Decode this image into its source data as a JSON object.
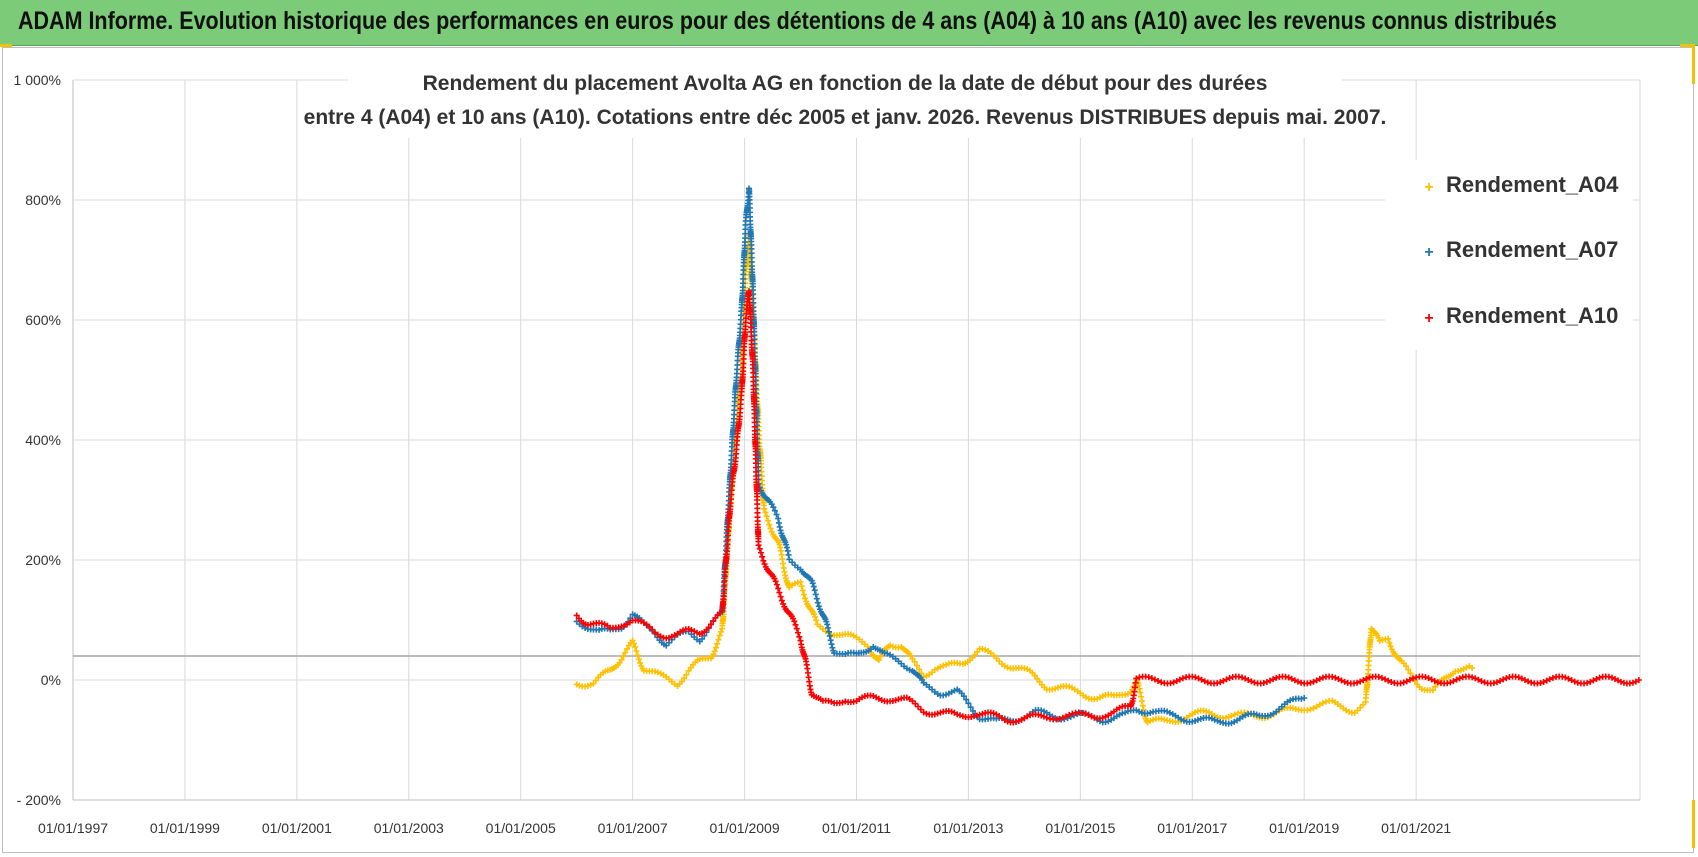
{
  "banner": {
    "title": "ADAM Informe. Evolution historique des performances en euros pour des détentions de 4 ans (A04) à 10 ans (A10) avec les revenus connus distribués"
  },
  "colors": {
    "banner_bg": "#7ccb78",
    "A04": "#ffc000",
    "A07": "#1f77b4",
    "A10": "#ff0000",
    "grid": "#d9d9d9",
    "reference_line": "#a6a6a6"
  },
  "chart_data": {
    "type": "scatter",
    "title_line1": "Rendement du placement Avolta AG en fonction de la date de début pour des durées",
    "title_line2": "entre 4 (A04) et 10 ans (A10). Cotations entre déc 2005 et janv. 2026. Revenus DISTRIBUES depuis mai. 2007.",
    "xlabel": "",
    "ylabel": "",
    "x_range": [
      1997.0,
      2025.0
    ],
    "ylim": [
      -200,
      1000
    ],
    "y_ticks": [
      1000,
      800,
      600,
      400,
      200,
      0,
      -200
    ],
    "y_tick_labels": [
      "1 000%",
      "800%",
      "600%",
      "400%",
      "200%",
      "0%",
      "- 200%"
    ],
    "x_ticks": [
      1997,
      1999,
      2001,
      2003,
      2005,
      2007,
      2009,
      2011,
      2013,
      2015,
      2017,
      2019,
      2021
    ],
    "x_tick_labels": [
      "01/01/1997",
      "01/01/1999",
      "01/01/2001",
      "01/01/2003",
      "01/01/2005",
      "01/01/2007",
      "01/01/2009",
      "01/01/2011",
      "01/01/2013",
      "01/01/2015",
      "01/01/2017",
      "01/01/2019",
      "01/01/2021"
    ],
    "reference_line_y": 40,
    "legend": [
      "Rendement_A04",
      "Rendement_A07",
      "Rendement_A10"
    ],
    "legend_position": "top-right",
    "series": [
      {
        "name": "Rendement_A04",
        "points": [
          [
            2006.0,
            -5
          ],
          [
            2006.3,
            -5
          ],
          [
            2006.6,
            15
          ],
          [
            2006.9,
            50
          ],
          [
            2007.0,
            60
          ],
          [
            2007.2,
            20
          ],
          [
            2007.5,
            5
          ],
          [
            2007.8,
            -5
          ],
          [
            2008.0,
            15
          ],
          [
            2008.2,
            30
          ],
          [
            2008.4,
            40
          ],
          [
            2008.6,
            80
          ],
          [
            2008.75,
            300
          ],
          [
            2008.85,
            420
          ],
          [
            2008.95,
            520
          ],
          [
            2009.02,
            680
          ],
          [
            2009.08,
            740
          ],
          [
            2009.15,
            620
          ],
          [
            2009.25,
            420
          ],
          [
            2009.35,
            280
          ],
          [
            2009.6,
            230
          ],
          [
            2009.8,
            150
          ],
          [
            2010.0,
            160
          ],
          [
            2010.3,
            90
          ],
          [
            2010.6,
            80
          ],
          [
            2010.9,
            70
          ],
          [
            2011.2,
            60
          ],
          [
            2011.4,
            30
          ],
          [
            2011.6,
            60
          ],
          [
            2011.8,
            60
          ],
          [
            2012.0,
            30
          ],
          [
            2012.2,
            10
          ],
          [
            2012.4,
            20
          ],
          [
            2012.6,
            20
          ],
          [
            2012.9,
            30
          ],
          [
            2013.2,
            50
          ],
          [
            2013.4,
            40
          ],
          [
            2013.6,
            30
          ],
          [
            2013.9,
            20
          ],
          [
            2014.1,
            10
          ],
          [
            2014.4,
            -10
          ],
          [
            2014.7,
            -15
          ],
          [
            2015.0,
            -20
          ],
          [
            2015.3,
            -30
          ],
          [
            2015.6,
            -30
          ],
          [
            2015.9,
            -15
          ],
          [
            2016.0,
            0
          ],
          [
            2016.2,
            -70
          ],
          [
            2016.5,
            -70
          ],
          [
            2016.9,
            -60
          ],
          [
            2017.3,
            -55
          ],
          [
            2017.7,
            -60
          ],
          [
            2018.1,
            -60
          ],
          [
            2018.5,
            -55
          ],
          [
            2018.8,
            -50
          ],
          [
            2019.0,
            -45
          ],
          [
            2019.5,
            -40
          ],
          [
            2019.9,
            -50
          ],
          [
            2020.1,
            -40
          ],
          [
            2020.2,
            90
          ],
          [
            2020.35,
            60
          ],
          [
            2020.5,
            70
          ],
          [
            2020.7,
            30
          ],
          [
            2020.9,
            10
          ],
          [
            2021.1,
            -10
          ],
          [
            2021.3,
            -20
          ],
          [
            2021.5,
            0
          ],
          [
            2021.7,
            20
          ],
          [
            2021.9,
            20
          ],
          [
            2022.0,
            20
          ]
        ]
      },
      {
        "name": "Rendement_A07",
        "points": [
          [
            2006.0,
            100
          ],
          [
            2006.2,
            90
          ],
          [
            2006.4,
            80
          ],
          [
            2006.6,
            80
          ],
          [
            2006.8,
            90
          ],
          [
            2007.0,
            110
          ],
          [
            2007.2,
            90
          ],
          [
            2007.4,
            80
          ],
          [
            2007.6,
            60
          ],
          [
            2007.8,
            70
          ],
          [
            2008.0,
            80
          ],
          [
            2008.2,
            70
          ],
          [
            2008.4,
            90
          ],
          [
            2008.6,
            110
          ],
          [
            2008.75,
            350
          ],
          [
            2008.85,
            500
          ],
          [
            2008.95,
            620
          ],
          [
            2009.02,
            760
          ],
          [
            2009.08,
            820
          ],
          [
            2009.15,
            650
          ],
          [
            2009.25,
            330
          ],
          [
            2009.4,
            300
          ],
          [
            2009.6,
            270
          ],
          [
            2009.8,
            200
          ],
          [
            2010.0,
            190
          ],
          [
            2010.2,
            160
          ],
          [
            2010.4,
            110
          ],
          [
            2010.6,
            50
          ],
          [
            2010.8,
            40
          ],
          [
            2011.0,
            40
          ],
          [
            2011.3,
            60
          ],
          [
            2011.5,
            40
          ],
          [
            2011.8,
            30
          ],
          [
            2012.0,
            20
          ],
          [
            2012.2,
            -10
          ],
          [
            2012.5,
            -20
          ],
          [
            2012.8,
            -20
          ],
          [
            2013.0,
            -40
          ],
          [
            2013.2,
            -60
          ],
          [
            2013.5,
            -70
          ],
          [
            2013.8,
            -65
          ],
          [
            2014.2,
            -55
          ],
          [
            2014.6,
            -60
          ],
          [
            2015.0,
            -60
          ],
          [
            2015.4,
            -65
          ],
          [
            2015.8,
            -60
          ],
          [
            2016.0,
            -50
          ],
          [
            2016.3,
            -50
          ],
          [
            2016.6,
            -60
          ],
          [
            2017.0,
            -65
          ],
          [
            2017.4,
            -70
          ],
          [
            2017.8,
            -65
          ],
          [
            2018.2,
            -60
          ],
          [
            2018.6,
            -45
          ],
          [
            2019.0,
            -30
          ]
        ]
      },
      {
        "name": "Rendement_A10",
        "points": [
          [
            2006.0,
            110
          ],
          [
            2006.2,
            95
          ],
          [
            2006.4,
            90
          ],
          [
            2006.6,
            85
          ],
          [
            2006.8,
            95
          ],
          [
            2007.0,
            100
          ],
          [
            2007.2,
            90
          ],
          [
            2007.4,
            80
          ],
          [
            2007.6,
            75
          ],
          [
            2007.8,
            75
          ],
          [
            2008.0,
            80
          ],
          [
            2008.2,
            80
          ],
          [
            2008.4,
            95
          ],
          [
            2008.6,
            110
          ],
          [
            2008.75,
            300
          ],
          [
            2008.85,
            380
          ],
          [
            2008.95,
            480
          ],
          [
            2009.02,
            600
          ],
          [
            2009.08,
            650
          ],
          [
            2009.15,
            520
          ],
          [
            2009.25,
            220
          ],
          [
            2009.4,
            190
          ],
          [
            2009.6,
            150
          ],
          [
            2009.8,
            110
          ],
          [
            2010.0,
            70
          ],
          [
            2010.2,
            -20
          ],
          [
            2010.4,
            -40
          ],
          [
            2010.6,
            -40
          ],
          [
            2010.8,
            -30
          ],
          [
            2011.0,
            -35
          ],
          [
            2011.3,
            -30
          ],
          [
            2011.6,
            -30
          ],
          [
            2011.9,
            -35
          ],
          [
            2012.2,
            -50
          ],
          [
            2012.5,
            -55
          ],
          [
            2012.8,
            -60
          ],
          [
            2013.1,
            -55
          ],
          [
            2013.4,
            -60
          ],
          [
            2013.7,
            -65
          ],
          [
            2014.0,
            -65
          ],
          [
            2014.4,
            -60
          ],
          [
            2014.8,
            -60
          ],
          [
            2015.2,
            -60
          ],
          [
            2015.6,
            -55
          ],
          [
            2015.9,
            -45
          ],
          [
            2016.0,
            0
          ],
          [
            2016.5,
            0
          ],
          [
            2017.0,
            0
          ],
          [
            2017.5,
            0
          ],
          [
            2018.0,
            0
          ],
          [
            2018.5,
            0
          ],
          [
            2019.0,
            0
          ],
          [
            2019.5,
            0
          ],
          [
            2020.0,
            0
          ],
          [
            2020.5,
            0
          ],
          [
            2021.0,
            0
          ],
          [
            2021.5,
            0
          ],
          [
            2022.0,
            0
          ],
          [
            2022.5,
            0
          ],
          [
            2023.0,
            0
          ],
          [
            2023.5,
            0
          ],
          [
            2024.0,
            0
          ],
          [
            2024.5,
            0
          ],
          [
            2024.98,
            0
          ]
        ]
      }
    ]
  }
}
